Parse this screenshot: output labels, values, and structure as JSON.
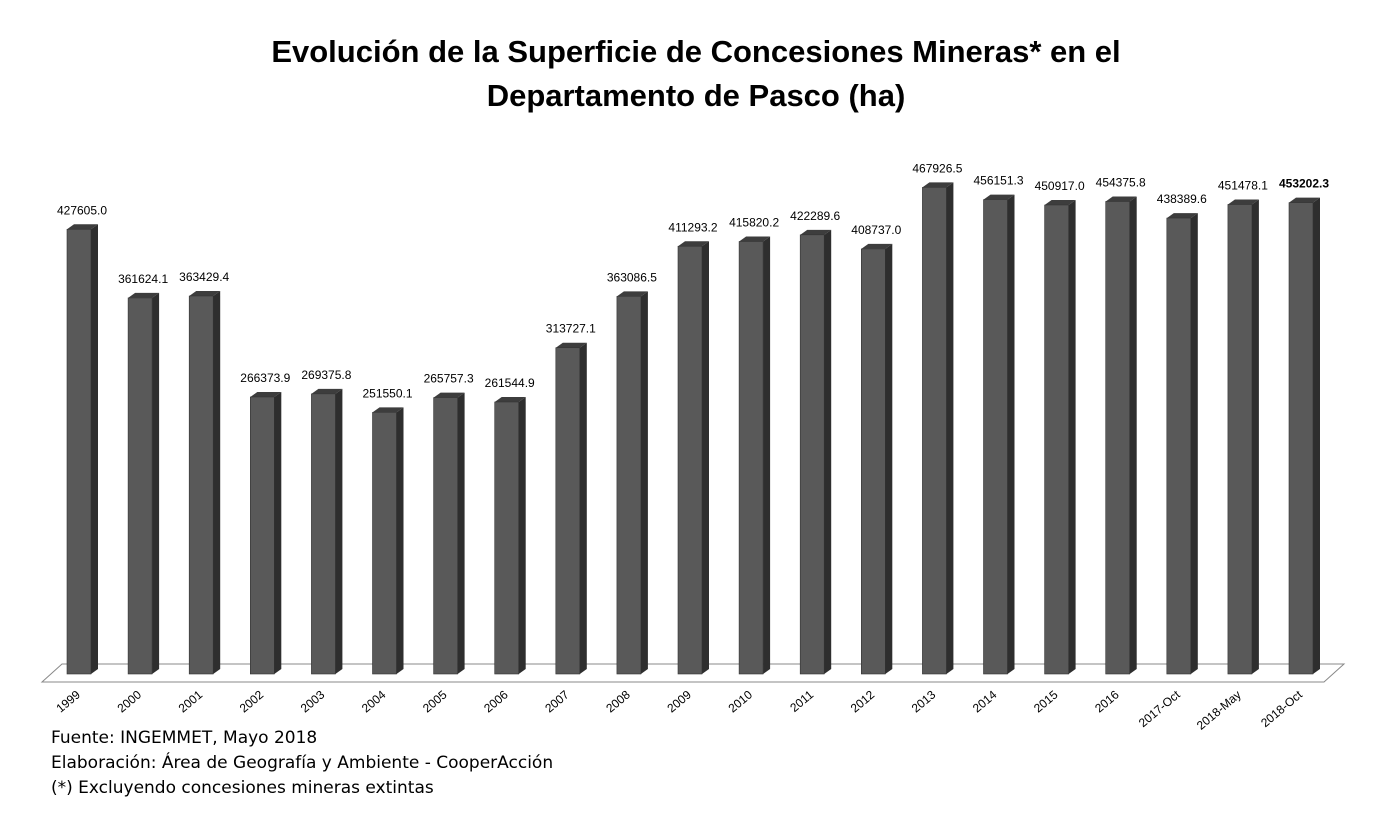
{
  "title": {
    "line1": "Evolución de la Superficie de Concesiones Mineras* en el",
    "line2": "Departamento de Pasco (ha)"
  },
  "notes": {
    "source": "Fuente: INGEMMET, Mayo 2018",
    "prepared_by": "Elaboración: Área de Geografía y Ambiente - CooperAcción",
    "footnote": "(*) Excluyendo concesiones mineras extintas"
  },
  "colors": {
    "bar_front": "#595959",
    "bar_side": "#2e2e2e",
    "bar_top": "#3d3d3d",
    "floor_line": "#888888"
  },
  "chart_data": {
    "type": "bar",
    "style": "3d-column",
    "grid": false,
    "legend": "none",
    "ylim": [
      0,
      500000
    ],
    "categories": [
      "1999",
      "2000",
      "2001",
      "2002",
      "2003",
      "2004",
      "2005",
      "2006",
      "2007",
      "2008",
      "2009",
      "2010",
      "2011",
      "2012",
      "2013",
      "2014",
      "2015",
      "2016",
      "2017-Oct",
      "2018-May",
      "2018-Oct"
    ],
    "values": [
      427605.0,
      361624.1,
      363429.4,
      266373.9,
      269375.8,
      251550.1,
      265757.3,
      261544.9,
      313727.1,
      363086.5,
      411293.2,
      415820.2,
      422289.6,
      408737.0,
      467926.5,
      456151.3,
      450917.0,
      454375.8,
      438389.6,
      451478.1,
      453202.3
    ],
    "data_labels": [
      "427605.0",
      "361624.1",
      "363429.4",
      "266373.9",
      "269375.8",
      "251550.1",
      "265757.3",
      "261544.9",
      "313727.1",
      "363086.5",
      "411293.2",
      "415820.2",
      "422289.6",
      "408737.0",
      "467926.5",
      "456151.3",
      "450917.0",
      "454375.8",
      "438389.6",
      "451478.1",
      "453202.3"
    ],
    "bold_labels": [
      "453202.3"
    ]
  }
}
